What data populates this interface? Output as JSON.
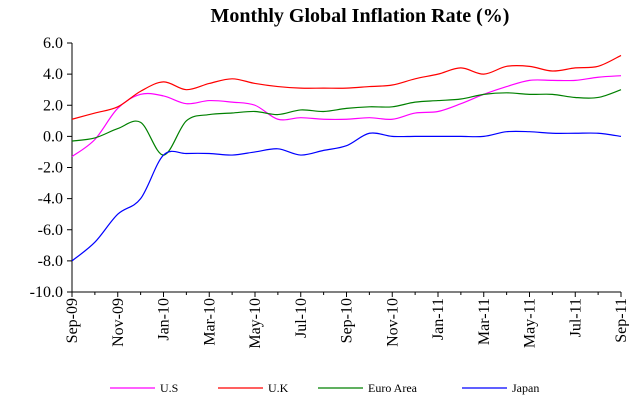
{
  "chart_data": {
    "type": "line",
    "title": "Monthly Global Inflation Rate (%)",
    "categories": [
      "Sep-09",
      null,
      "Nov-09",
      null,
      "Jan-10",
      null,
      "Mar-10",
      null,
      "May-10",
      null,
      "Jul-10",
      null,
      "Sep-10",
      null,
      "Nov-10",
      null,
      "Jan-11",
      null,
      "Mar-11",
      null,
      "May-11",
      null,
      "Jul-11",
      null,
      "Sep-11"
    ],
    "series": [
      {
        "name": "U.S",
        "color": "#ff00ff",
        "values": [
          -1.3,
          -0.2,
          1.8,
          2.7,
          2.6,
          2.1,
          2.3,
          2.2,
          2.0,
          1.1,
          1.2,
          1.1,
          1.1,
          1.2,
          1.1,
          1.5,
          1.6,
          2.1,
          2.7,
          3.2,
          3.6,
          3.6,
          3.6,
          3.8,
          3.9
        ]
      },
      {
        "name": "U.K",
        "color": "#ff0000",
        "values": [
          1.1,
          1.5,
          1.9,
          2.9,
          3.5,
          3.0,
          3.4,
          3.7,
          3.4,
          3.2,
          3.1,
          3.1,
          3.1,
          3.2,
          3.3,
          3.7,
          4.0,
          4.4,
          4.0,
          4.5,
          4.5,
          4.2,
          4.4,
          4.5,
          5.2
        ]
      },
      {
        "name": "Euro Area",
        "color": "#008000",
        "values": [
          -0.3,
          -0.1,
          0.5,
          0.9,
          -1.2,
          1.0,
          1.4,
          1.5,
          1.6,
          1.4,
          1.7,
          1.6,
          1.8,
          1.9,
          1.9,
          2.2,
          2.3,
          2.4,
          2.7,
          2.8,
          2.7,
          2.7,
          2.5,
          2.5,
          3.0
        ]
      },
      {
        "name": "Japan",
        "color": "#0000ff",
        "values": [
          -8.0,
          -6.8,
          -5.0,
          -4.0,
          -1.2,
          -1.1,
          -1.1,
          -1.2,
          -1.0,
          -0.8,
          -1.2,
          -0.9,
          -0.6,
          0.2,
          0.0,
          0.0,
          0.0,
          0.0,
          0.0,
          0.3,
          0.3,
          0.2,
          0.2,
          0.2,
          0.0
        ]
      }
    ],
    "ylim": [
      -10,
      6
    ],
    "yticks": [
      {
        "value": 6,
        "label": "6.0"
      },
      {
        "value": 4,
        "label": "4.0"
      },
      {
        "value": 2,
        "label": "2.0"
      },
      {
        "value": 0,
        "label": "0.0"
      },
      {
        "value": -2,
        "label": "-2.0"
      },
      {
        "value": -4,
        "label": "-4.0"
      },
      {
        "value": -6,
        "label": "-6.0"
      },
      {
        "value": -8,
        "label": "-8.0"
      },
      {
        "value": -10,
        "label": "-10.0"
      }
    ],
    "grid": false,
    "legend": "bottom"
  }
}
